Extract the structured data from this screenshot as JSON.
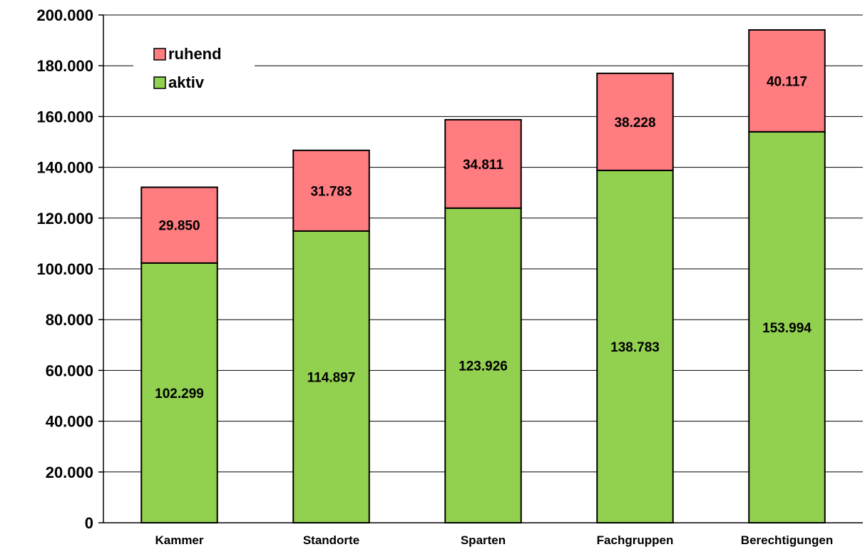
{
  "chart_data": {
    "type": "bar",
    "stacked": true,
    "categories": [
      "Kammer",
      "Standorte",
      "Sparten",
      "Fachgruppen",
      "Berechtigungen"
    ],
    "series": [
      {
        "name": "aktiv",
        "values": [
          102299,
          114897,
          123926,
          138783,
          153994
        ],
        "labels": [
          "102.299",
          "114.897",
          "123.926",
          "138.783",
          "153.994"
        ],
        "color": "#92d050"
      },
      {
        "name": "ruhend",
        "values": [
          29850,
          31783,
          34811,
          38228,
          40117
        ],
        "labels": [
          "29.850",
          "31.783",
          "34.811",
          "38.228",
          "40.117"
        ],
        "color": "#ff7c80"
      }
    ],
    "ylim": [
      0,
      200000
    ],
    "yticks": [
      0,
      20000,
      40000,
      60000,
      80000,
      100000,
      120000,
      140000,
      160000,
      180000,
      200000
    ],
    "ytick_labels": [
      "0",
      "20.000",
      "40.000",
      "60.000",
      "80.000",
      "100.000",
      "120.000",
      "140.000",
      "160.000",
      "180.000",
      "200.000"
    ],
    "grid": true,
    "legend_position": "top-left",
    "legend_order": [
      "ruhend",
      "aktiv"
    ],
    "title": "",
    "xlabel": "",
    "ylabel": ""
  }
}
